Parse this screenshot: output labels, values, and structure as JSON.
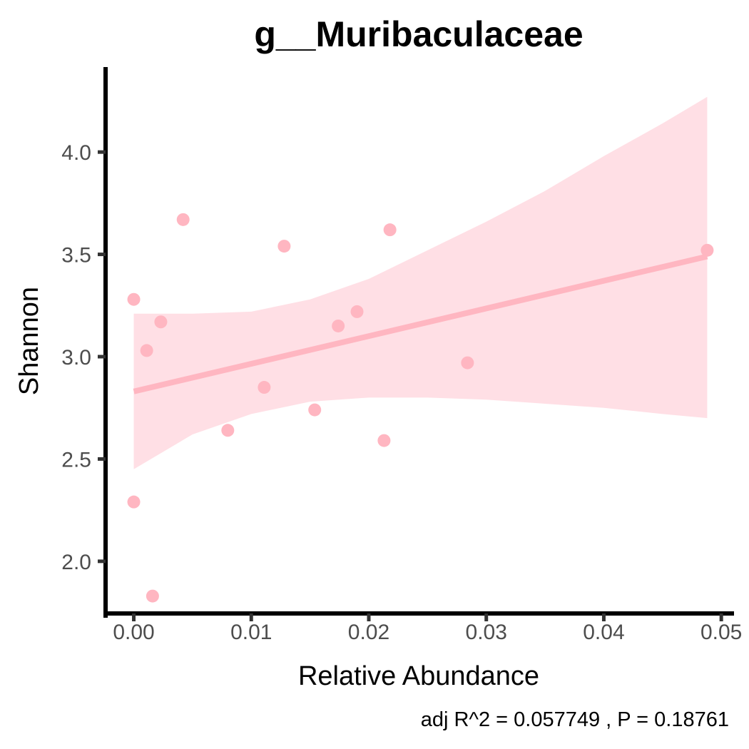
{
  "chart_data": {
    "type": "scatter",
    "title": "g__Muribaculaceae",
    "xlabel": "Relative Abundance",
    "ylabel": "Shannon",
    "caption": "adj R^2 =  0.057749 , P = 0.18761",
    "xlim": [
      -0.0024,
      0.0509
    ],
    "ylim": [
      1.745,
      4.405
    ],
    "x_ticks": [
      0.0,
      0.01,
      0.02,
      0.03,
      0.04,
      0.05
    ],
    "x_tick_labels": [
      "0.00",
      "0.01",
      "0.02",
      "0.03",
      "0.04",
      "0.05"
    ],
    "y_ticks": [
      2.0,
      2.5,
      3.0,
      3.5,
      4.0
    ],
    "y_tick_labels": [
      "2.0",
      "2.5",
      "3.0",
      "3.5",
      "4.0"
    ],
    "grid": false,
    "points": [
      {
        "x": 0.0,
        "y": 3.28
      },
      {
        "x": 0.0,
        "y": 2.29
      },
      {
        "x": 0.0011,
        "y": 3.03
      },
      {
        "x": 0.0016,
        "y": 1.83
      },
      {
        "x": 0.0023,
        "y": 3.17
      },
      {
        "x": 0.0042,
        "y": 3.67
      },
      {
        "x": 0.008,
        "y": 2.64
      },
      {
        "x": 0.0111,
        "y": 2.85
      },
      {
        "x": 0.0128,
        "y": 3.54
      },
      {
        "x": 0.0154,
        "y": 2.74
      },
      {
        "x": 0.0174,
        "y": 3.15
      },
      {
        "x": 0.019,
        "y": 3.22
      },
      {
        "x": 0.0213,
        "y": 2.59
      },
      {
        "x": 0.0218,
        "y": 3.62
      },
      {
        "x": 0.0284,
        "y": 2.97
      },
      {
        "x": 0.0488,
        "y": 3.52
      }
    ],
    "regression": {
      "x": [
        0.0,
        0.0488
      ],
      "y": [
        2.83,
        3.49
      ]
    },
    "confidence_band": {
      "x": [
        0.0,
        0.005,
        0.01,
        0.015,
        0.02,
        0.025,
        0.03,
        0.035,
        0.04,
        0.045,
        0.0488
      ],
      "upper": [
        3.21,
        3.21,
        3.22,
        3.28,
        3.38,
        3.52,
        3.66,
        3.81,
        3.98,
        4.14,
        4.27
      ],
      "lower": [
        2.45,
        2.62,
        2.72,
        2.78,
        2.8,
        2.8,
        2.79,
        2.77,
        2.75,
        2.72,
        2.7
      ]
    },
    "colors": {
      "point": "#ffb6c1",
      "line": "#ffb6c1",
      "band": "#ffdfe5",
      "axis": "#000000"
    }
  }
}
